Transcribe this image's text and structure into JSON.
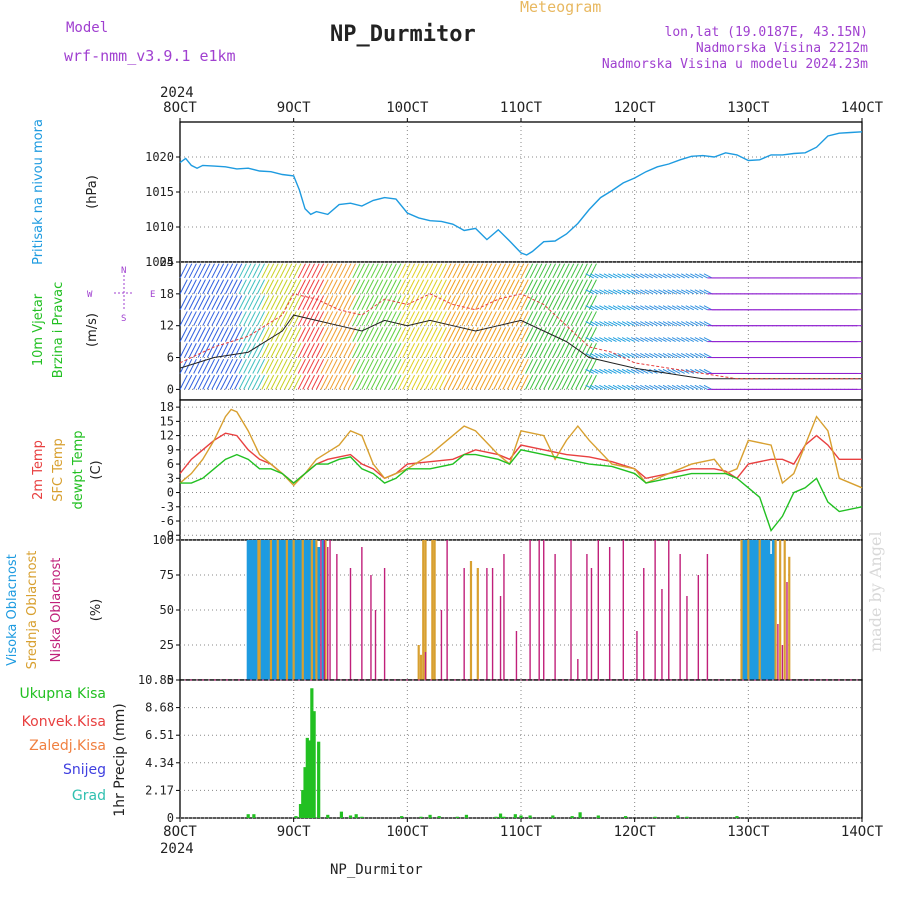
{
  "header": {
    "model_label": "Model",
    "model_value": "wrf-nmm_v3.9.1  e1km",
    "station": "NP_Durmitor",
    "meteogram": "Meteogram",
    "lonlat": "lon,lat (19.0187E, 43.15N)",
    "altitude": "Nadmorska Visina 2212m",
    "model_altitude": "Nadmorska Visina u modelu 2024.23m"
  },
  "footer": {
    "station": "NP_Durmitor",
    "credit": "made by Angel"
  },
  "time_axis": {
    "year": "2024",
    "ticks": [
      "8OCT",
      "9OCT",
      "10OCT",
      "11OCT",
      "12OCT",
      "13OCT",
      "14OCT"
    ],
    "range_days": [
      8,
      14
    ]
  },
  "colors": {
    "pressure": "#1e9be0",
    "temp2m": "#e84040",
    "sfctemp": "#d8a030",
    "dewpt": "#22c022",
    "high_cloud": "#1e9be0",
    "mid_cloud": "#d8a030",
    "low_cloud": "#c0207a",
    "precip_total": "#22c022",
    "precip_conv": "#e84040",
    "precip_frozen": "#f08040",
    "snow": "#4040e0",
    "hail": "#30c0b0",
    "meta_purple": "#a040d0",
    "meta_orange": "#e8b860"
  },
  "chart_data": [
    {
      "type": "line",
      "panel": "pressure",
      "title": "",
      "ylabel_lines": [
        "Pritisak na nivou mora"
      ],
      "unit": "(hPa)",
      "ylim": [
        1005,
        1025
      ],
      "yticks": [
        "1005",
        "1010",
        "1015",
        "1020"
      ],
      "series": [
        {
          "x": [
            8.0,
            8.05,
            8.1,
            8.15,
            8.2,
            8.3,
            8.4,
            8.5,
            8.6,
            8.7,
            8.8,
            8.9,
            9.0,
            9.05,
            9.1,
            9.15,
            9.2,
            9.3,
            9.4,
            9.5,
            9.6,
            9.7,
            9.8,
            9.9,
            10.0,
            10.1,
            10.2,
            10.3,
            10.4,
            10.5,
            10.6,
            10.7,
            10.8,
            10.9,
            11.0,
            11.05,
            11.1,
            11.2,
            11.3,
            11.4,
            11.5,
            11.6,
            11.7,
            11.8,
            11.9,
            12.0,
            12.1,
            12.2,
            12.3,
            12.4,
            12.5,
            12.6,
            12.7,
            12.8,
            12.9,
            13.0,
            13.1,
            13.2,
            13.3,
            13.4,
            13.5,
            13.6,
            13.7,
            13.8,
            13.9,
            14.0
          ],
          "values": [
            1019.2,
            1019.8,
            1018.8,
            1018.4,
            1018.8,
            1018.7,
            1018.6,
            1018.3,
            1018.4,
            1018.0,
            1017.9,
            1017.5,
            1017.3,
            1015.3,
            1012.6,
            1011.8,
            1012.2,
            1011.8,
            1013.2,
            1013.4,
            1013.0,
            1013.8,
            1014.2,
            1014.0,
            1012.0,
            1011.3,
            1010.9,
            1010.8,
            1010.4,
            1009.5,
            1009.8,
            1008.2,
            1009.6,
            1008.0,
            1006.3,
            1006.0,
            1006.5,
            1007.9,
            1008.0,
            1009.0,
            1010.5,
            1012.5,
            1014.2,
            1015.2,
            1016.3,
            1017.0,
            1017.9,
            1018.6,
            1019.0,
            1019.6,
            1020.1,
            1020.2,
            1020.0,
            1020.6,
            1020.3,
            1019.5,
            1019.6,
            1020.3,
            1020.3,
            1020.5,
            1020.6,
            1021.4,
            1023.0,
            1023.4,
            1023.5,
            1023.6
          ]
        }
      ]
    },
    {
      "type": "scatter",
      "panel": "wind",
      "title": "",
      "ylabel_lines": [
        "10m Vjetar",
        "Brzina i Pravac"
      ],
      "unit": "(m/s)",
      "compass": [
        "W",
        "E",
        "N",
        "S"
      ],
      "ylim": [
        -2,
        24
      ],
      "yticks": [
        "0",
        "6",
        "12",
        "18",
        "24"
      ],
      "speed": {
        "x": [
          8.0,
          8.3,
          8.6,
          8.9,
          9.0,
          9.2,
          9.4,
          9.6,
          9.8,
          10.0,
          10.2,
          10.4,
          10.6,
          10.8,
          11.0,
          11.2,
          11.4,
          11.6,
          11.8,
          12.0,
          12.3,
          12.6,
          12.9,
          13.2,
          13.5,
          13.8,
          14.0
        ],
        "values": [
          4,
          6,
          7,
          11,
          14,
          13,
          12,
          11,
          13,
          12,
          13,
          12,
          11,
          12,
          13,
          11,
          9,
          6,
          5,
          4,
          3,
          2,
          2,
          2,
          2,
          2,
          2
        ]
      },
      "gust": {
        "x": [
          8.0,
          8.3,
          8.6,
          8.9,
          9.0,
          9.2,
          9.4,
          9.6,
          9.8,
          10.0,
          10.2,
          10.4,
          10.6,
          10.8,
          11.0,
          11.2,
          11.4,
          11.6,
          11.8,
          12.0,
          12.3,
          12.6,
          12.9,
          13.2,
          13.5,
          13.8,
          14.0
        ],
        "values": [
          5,
          8,
          10,
          14,
          18,
          17,
          15,
          14,
          17,
          16,
          18,
          16,
          15,
          17,
          18,
          16,
          12,
          8,
          7,
          5,
          4,
          3,
          2,
          2,
          2,
          2,
          2
        ]
      }
    },
    {
      "type": "line",
      "panel": "temperature",
      "title": "",
      "ylabel_lines": [
        "2m Temp",
        "SFC Temp",
        "dewpt Temp"
      ],
      "unit": "(C)",
      "ylim": [
        -10,
        19.5
      ],
      "yticks": [
        "-9",
        "-6",
        "-3",
        "0",
        "3",
        "6",
        "9",
        "12",
        "15",
        "18"
      ],
      "series": [
        {
          "name": "2m Temp",
          "x": [
            8.0,
            8.1,
            8.2,
            8.3,
            8.4,
            8.5,
            8.6,
            8.7,
            8.8,
            8.9,
            9.0,
            9.1,
            9.2,
            9.3,
            9.4,
            9.5,
            9.6,
            9.7,
            9.8,
            9.9,
            10.0,
            10.2,
            10.4,
            10.5,
            10.6,
            10.8,
            10.9,
            11.0,
            11.2,
            11.4,
            11.6,
            11.8,
            12.0,
            12.1,
            12.3,
            12.5,
            12.7,
            12.8,
            12.9,
            13.0,
            13.2,
            13.3,
            13.4,
            13.5,
            13.6,
            13.7,
            13.8,
            14.0
          ],
          "values": [
            4,
            7,
            9,
            11,
            12.5,
            12,
            9,
            7,
            6,
            4,
            2,
            4,
            6,
            7,
            7.5,
            8,
            6,
            5,
            3,
            4,
            6,
            6.5,
            7,
            8,
            9,
            8,
            7,
            10,
            9,
            8,
            7.5,
            6.5,
            5,
            3,
            4,
            5,
            5,
            4.5,
            3,
            6,
            7,
            7,
            6,
            10,
            12,
            10,
            7,
            7
          ]
        },
        {
          "name": "SFC Temp",
          "x": [
            8.0,
            8.1,
            8.2,
            8.3,
            8.4,
            8.45,
            8.5,
            8.6,
            8.7,
            8.8,
            8.9,
            9.0,
            9.1,
            9.2,
            9.3,
            9.4,
            9.5,
            9.6,
            9.7,
            9.8,
            9.9,
            10.0,
            10.2,
            10.4,
            10.5,
            10.6,
            10.8,
            10.9,
            11.0,
            11.2,
            11.3,
            11.4,
            11.5,
            11.6,
            11.8,
            12.0,
            12.1,
            12.3,
            12.5,
            12.7,
            12.8,
            12.9,
            13.0,
            13.2,
            13.3,
            13.4,
            13.5,
            13.6,
            13.7,
            13.8,
            14.0
          ],
          "values": [
            2,
            4,
            7,
            11,
            16,
            17.5,
            17,
            13,
            8,
            6,
            4,
            1.5,
            4,
            7,
            8.5,
            10,
            13,
            12,
            6,
            3,
            4,
            5,
            8,
            12,
            14,
            13,
            8,
            6,
            13,
            12,
            7,
            11,
            14,
            11,
            6,
            5,
            2,
            4,
            6,
            7,
            4,
            5,
            11,
            10,
            2,
            4,
            10,
            16,
            13,
            3,
            1
          ]
        },
        {
          "name": "dewpt Temp",
          "x": [
            8.0,
            8.1,
            8.2,
            8.3,
            8.4,
            8.5,
            8.6,
            8.7,
            8.8,
            8.9,
            9.0,
            9.1,
            9.2,
            9.3,
            9.4,
            9.5,
            9.6,
            9.7,
            9.8,
            9.9,
            10.0,
            10.2,
            10.4,
            10.5,
            10.6,
            10.8,
            10.9,
            11.0,
            11.2,
            11.4,
            11.6,
            11.8,
            12.0,
            12.1,
            12.3,
            12.5,
            12.7,
            12.8,
            12.9,
            13.0,
            13.1,
            13.2,
            13.3,
            13.4,
            13.5,
            13.6,
            13.7,
            13.8,
            14.0
          ],
          "values": [
            2,
            2,
            3,
            5,
            7,
            8,
            7,
            5,
            5,
            4,
            2,
            4,
            6,
            6,
            7,
            7.5,
            5,
            4,
            2,
            3,
            5,
            5,
            6,
            8,
            8,
            7,
            6,
            9,
            8,
            7,
            6,
            5.5,
            4,
            2,
            3,
            4,
            4,
            4,
            3,
            1,
            -1,
            -8,
            -5,
            0,
            1,
            3,
            -2,
            -4,
            -3
          ]
        }
      ]
    },
    {
      "type": "bar",
      "panel": "clouds",
      "title": "",
      "ylabel_lines": [
        "Visoka Oblacnost",
        "Srednja Oblacnost",
        "Niska Oblacnost"
      ],
      "unit": "(%)",
      "ylim": [
        0,
        100
      ],
      "yticks": [
        "0",
        "25",
        "50",
        "75",
        "100"
      ],
      "series": [
        {
          "name": "Visoka Oblacnost",
          "x": [
            8.6,
            8.62,
            8.64,
            8.66,
            8.68,
            8.72,
            8.74,
            8.76,
            8.78,
            8.82,
            8.84,
            8.88,
            8.9,
            8.92,
            8.96,
            8.98,
            9.02,
            9.04,
            9.06,
            9.1,
            9.12,
            9.14,
            9.18,
            9.22,
            9.26,
            12.95,
            12.97,
            12.99,
            13.01,
            13.03,
            13.05,
            13.07,
            13.09,
            13.12,
            13.14,
            13.16,
            13.18,
            13.2,
            13.22
          ],
          "values": [
            100,
            100,
            100,
            100,
            100,
            100,
            100,
            100,
            100,
            100,
            100,
            100,
            100,
            100,
            100,
            100,
            100,
            100,
            100,
            100,
            100,
            100,
            100,
            95,
            100,
            100,
            100,
            100,
            100,
            100,
            100,
            100,
            100,
            100,
            100,
            100,
            100,
            90,
            100
          ]
        },
        {
          "name": "Srednja Oblacnost",
          "x": [
            8.69,
            8.7,
            8.8,
            8.86,
            8.94,
            9.0,
            9.08,
            9.16,
            9.2,
            9.28,
            10.1,
            10.12,
            10.14,
            10.16,
            10.22,
            10.24,
            10.56,
            10.62,
            12.94,
            13.0,
            13.1,
            13.24,
            13.28,
            13.32,
            13.36
          ],
          "values": [
            100,
            100,
            100,
            100,
            100,
            100,
            100,
            100,
            100,
            100,
            25,
            18,
            100,
            100,
            100,
            100,
            85,
            80,
            100,
            100,
            100,
            100,
            100,
            100,
            88
          ]
        },
        {
          "name": "Niska Oblacnost",
          "x": [
            9.24,
            9.27,
            9.3,
            9.32,
            9.38,
            9.5,
            9.6,
            9.68,
            9.72,
            9.8,
            10.16,
            10.3,
            10.35,
            10.5,
            10.7,
            10.75,
            10.82,
            10.85,
            10.96,
            11.08,
            11.16,
            11.2,
            11.3,
            11.44,
            11.5,
            11.58,
            11.62,
            11.68,
            11.78,
            11.9,
            12.02,
            12.08,
            12.18,
            12.24,
            12.3,
            12.4,
            12.46,
            12.56,
            12.64,
            13.26,
            13.3,
            13.34
          ],
          "values": [
            100,
            100,
            95,
            100,
            90,
            80,
            95,
            75,
            50,
            80,
            20,
            50,
            100,
            80,
            80,
            80,
            60,
            90,
            35,
            100,
            100,
            100,
            90,
            100,
            15,
            90,
            80,
            100,
            95,
            100,
            35,
            80,
            100,
            65,
            100,
            90,
            60,
            75,
            90,
            40,
            25,
            70
          ]
        }
      ]
    },
    {
      "type": "bar",
      "panel": "precip",
      "title": "",
      "ylabel_lines": [
        "1hr Precip"
      ],
      "unit": "(mm)",
      "legend": [
        "Ukupna Kisa",
        "Konvek.Kisa",
        "Zaledj.Kisa",
        "Snijeg",
        "Grad"
      ],
      "ylim": [
        0,
        10.85
      ],
      "yticks": [
        "0",
        "2.17",
        "4.34",
        "6.51",
        "8.68",
        "10.85"
      ],
      "series": [
        {
          "name": "Ukupna Kisa",
          "x": [
            8.6,
            8.65,
            9.02,
            9.06,
            9.08,
            9.1,
            9.12,
            9.14,
            9.16,
            9.18,
            9.22,
            9.3,
            9.42,
            9.5,
            9.55,
            9.6,
            9.95,
            10.12,
            10.2,
            10.28,
            10.44,
            10.52,
            10.78,
            10.82,
            10.85,
            10.95,
            11.0,
            11.08,
            11.28,
            11.45,
            11.52,
            11.68,
            11.92,
            12.18,
            12.38,
            12.46,
            12.9
          ],
          "values": [
            0.3,
            0.3,
            0.15,
            1.1,
            2.2,
            4.0,
            6.3,
            6.1,
            10.2,
            8.4,
            6.0,
            0.25,
            0.5,
            0.2,
            0.3,
            0.1,
            0.15,
            0.1,
            0.25,
            0.15,
            0.1,
            0.25,
            0.1,
            0.35,
            0.1,
            0.3,
            0.2,
            0.2,
            0.2,
            0.15,
            0.45,
            0.2,
            0.15,
            0.1,
            0.2,
            0.1,
            0.15
          ]
        }
      ]
    }
  ]
}
